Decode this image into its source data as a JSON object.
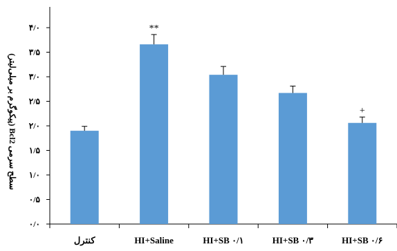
{
  "chart_data": {
    "type": "bar",
    "title": "",
    "xlabel": "",
    "ylabel": "سطح سرمی Bcl2 (پیکوگرم بر میلی‌لیتر)",
    "categories": [
      "کنترل",
      "HI+Saline",
      "HI+SB ۰/۱",
      "HI+SB ۰/۳",
      "HI+SB ۰/۶"
    ],
    "values": [
      1.9,
      3.66,
      3.04,
      2.67,
      2.06
    ],
    "errors": [
      0.09,
      0.2,
      0.17,
      0.14,
      0.12
    ],
    "annotations": [
      "",
      "**",
      "",
      "",
      "+"
    ],
    "ylim": [
      0,
      4.0
    ],
    "yticks": [
      0,
      0.5,
      1.0,
      1.5,
      2.0,
      2.5,
      3.0,
      3.5,
      4.0
    ],
    "ytick_labels": [
      "۰/۰",
      "۰/۵",
      "۱/۰",
      "۱/۵",
      "۲/۰",
      "۲/۵",
      "۳/۰",
      "۳/۵",
      "۴/۰"
    ],
    "grid": false,
    "legend": "none",
    "bar_color": "#5b9bd5"
  }
}
